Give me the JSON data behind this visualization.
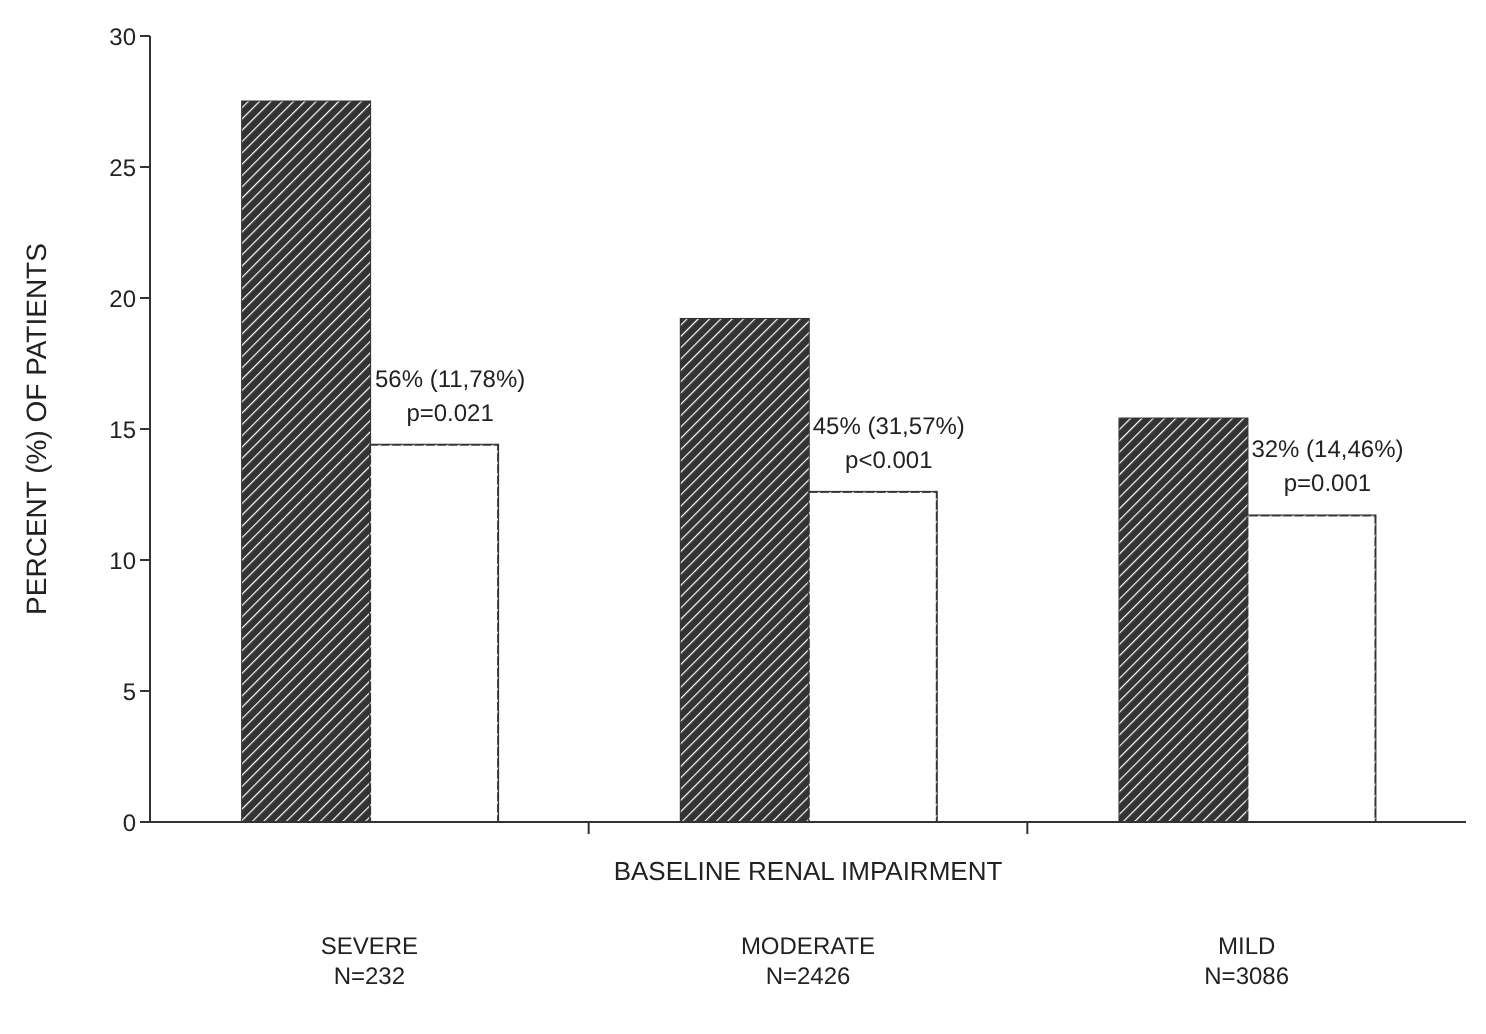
{
  "chart_data": {
    "type": "bar",
    "xlabel": "BASELINE RENAL IMPAIRMENT",
    "ylabel": "PERCENT (%) OF PATIENTS",
    "categories": [
      "SEVERE\nN=232",
      "MODERATE\nN=2426",
      "MILD\nN=3086"
    ],
    "series": [
      {
        "color": "#333333",
        "values": [
          27.5,
          19.2,
          15.4
        ]
      },
      {
        "color": "#ffffff",
        "values": [
          14.4,
          12.6,
          11.7
        ]
      }
    ],
    "ylim": [
      0,
      30
    ],
    "yticks": [
      0,
      5,
      10,
      15,
      20,
      25,
      30
    ],
    "grid": false,
    "legend": false,
    "annotations": [
      {
        "text": "56% (11,78%)\np=0.021",
        "x": "SEVERE\nN=232",
        "y": 14.4
      },
      {
        "text": "45% (31,57%)\np<0.001",
        "x": "MODERATE\nN=2426",
        "y": 12.6
      },
      {
        "text": "32% (14,46%)\np=0.001",
        "x": "MILD\nN=3086",
        "y": 11.7
      }
    ]
  }
}
